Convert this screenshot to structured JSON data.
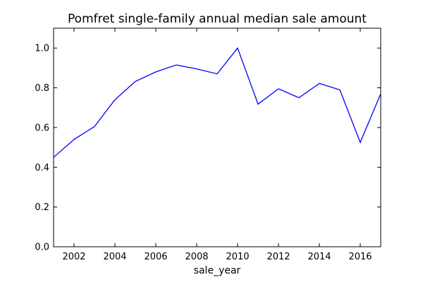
{
  "chart_data": {
    "type": "line",
    "title": "Pomfret single-family annual median sale amount",
    "xlabel": "sale_year",
    "ylabel": "",
    "xlim": [
      2001,
      2017
    ],
    "ylim": [
      0.0,
      1.1
    ],
    "x_ticks": [
      2002,
      2004,
      2006,
      2008,
      2010,
      2012,
      2014,
      2016
    ],
    "x_tick_labels": [
      "2002",
      "2004",
      "2006",
      "2008",
      "2010",
      "2012",
      "2014",
      "2016"
    ],
    "y_ticks": [
      0.0,
      0.2,
      0.4,
      0.6,
      0.8,
      1.0
    ],
    "y_tick_labels": [
      "0.0",
      "0.2",
      "0.4",
      "0.6",
      "0.8",
      "1.0"
    ],
    "grid": false,
    "legend": "none",
    "x": [
      2001,
      2002,
      2003,
      2004,
      2005,
      2006,
      2007,
      2008,
      2009,
      2010,
      2011,
      2012,
      2013,
      2014,
      2015,
      2016,
      2017
    ],
    "series": [
      {
        "color": "#0000ff",
        "values": [
          0.45,
          0.54,
          0.605,
          0.74,
          0.832,
          0.88,
          0.915,
          0.895,
          0.87,
          1.0,
          0.718,
          0.795,
          0.75,
          0.822,
          0.79,
          0.525,
          0.77
        ]
      }
    ]
  }
}
